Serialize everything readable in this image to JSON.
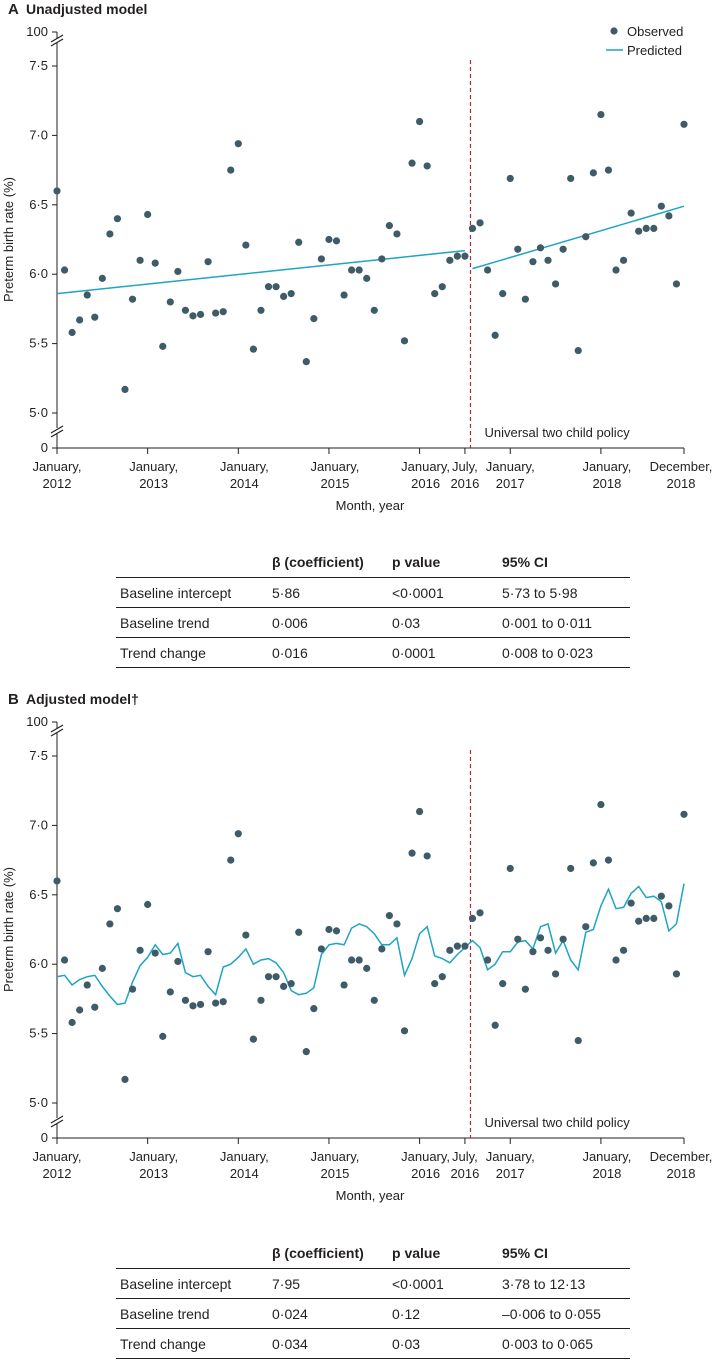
{
  "colors": {
    "observed": "#3f5b68",
    "predicted": "#1ea4c4",
    "policy_line": "#b0283c",
    "axis": "#231f20"
  },
  "chart_data": [
    {
      "panel_letter": "A",
      "title": "Unadjusted model",
      "type": "scatter",
      "ylabel": "Preterm birth rate (%)",
      "xlabel": "Month, year",
      "x_ticks": [
        {
          "line1": "January,",
          "line2": "2012"
        },
        {
          "line1": "January,",
          "line2": "2013"
        },
        {
          "line1": "January,",
          "line2": "2014"
        },
        {
          "line1": "January,",
          "line2": "2015"
        },
        {
          "line1": "January,",
          "line2": "2016"
        },
        {
          "line1": "July,",
          "line2": "2016"
        },
        {
          "line1": "January,",
          "line2": "2017"
        },
        {
          "line1": "January,",
          "line2": "2018"
        },
        {
          "line1": "December,",
          "line2": "2018"
        }
      ],
      "y_ticks": [
        "5·0",
        "5·5",
        "6·0",
        "6·5",
        "7·0",
        "7·5"
      ],
      "y_break_top": "100",
      "y_break_bottom": "0",
      "ylim": [
        4.9,
        7.6
      ],
      "legend": {
        "observed": "Observed",
        "predicted": "Predicted",
        "position": "top-right"
      },
      "policy_month": 55,
      "policy_label": "Universal two child policy",
      "observed": [
        6.6,
        6.03,
        5.58,
        5.67,
        5.85,
        5.69,
        5.97,
        6.29,
        6.4,
        5.17,
        5.82,
        6.1,
        6.43,
        6.08,
        5.48,
        5.8,
        6.02,
        5.74,
        5.7,
        5.71,
        6.09,
        5.72,
        5.73,
        6.75,
        6.94,
        6.21,
        5.46,
        5.74,
        5.91,
        5.91,
        5.84,
        5.86,
        6.23,
        5.37,
        5.68,
        6.11,
        6.25,
        6.24,
        5.85,
        6.03,
        6.03,
        5.97,
        5.74,
        6.11,
        6.35,
        6.29,
        5.52,
        6.8,
        7.1,
        6.78,
        5.86,
        5.91,
        6.1,
        6.13,
        6.13,
        6.33,
        6.37,
        6.03,
        5.56,
        5.86,
        6.69,
        6.18,
        5.82,
        6.09,
        6.19,
        6.1,
        5.93,
        6.18,
        6.69,
        5.45,
        6.27,
        6.73,
        7.15,
        6.75,
        6.03,
        6.1,
        6.44,
        6.31,
        6.33,
        6.33,
        6.49,
        6.42,
        5.93,
        7.08
      ],
      "predicted_segments": [
        {
          "x": [
            0,
            54
          ],
          "y": [
            5.86,
            6.17
          ]
        },
        {
          "x": [
            55,
            83
          ],
          "y": [
            6.04,
            6.49
          ]
        }
      ],
      "table": {
        "headers": [
          "",
          "β (coefficient)",
          "p value",
          "95% CI"
        ],
        "rows": [
          [
            "Baseline intercept",
            "5·86",
            "<0·0001",
            "5·73 to 5·98"
          ],
          [
            "Baseline trend",
            "0·006",
            "0·03",
            "0·001 to 0·011"
          ],
          [
            "Trend change",
            "0·016",
            "0·0001",
            "0·008 to 0·023"
          ]
        ]
      }
    },
    {
      "panel_letter": "B",
      "title": "Adjusted model†",
      "type": "scatter",
      "ylabel": "Preterm birth rate (%)",
      "xlabel": "Month, year",
      "x_ticks": [
        {
          "line1": "January,",
          "line2": "2012"
        },
        {
          "line1": "January,",
          "line2": "2013"
        },
        {
          "line1": "January,",
          "line2": "2014"
        },
        {
          "line1": "January,",
          "line2": "2015"
        },
        {
          "line1": "January,",
          "line2": "2016"
        },
        {
          "line1": "July,",
          "line2": "2016"
        },
        {
          "line1": "January,",
          "line2": "2017"
        },
        {
          "line1": "January,",
          "line2": "2018"
        },
        {
          "line1": "December,",
          "line2": "2018"
        }
      ],
      "y_ticks": [
        "5·0",
        "5·5",
        "6·0",
        "6·5",
        "7·0",
        "7·5"
      ],
      "y_break_top": "100",
      "y_break_bottom": "0",
      "ylim": [
        4.9,
        7.6
      ],
      "policy_month": 55,
      "policy_label": "Universal two child policy",
      "observed": [
        6.6,
        6.03,
        5.58,
        5.67,
        5.85,
        5.69,
        5.97,
        6.29,
        6.4,
        5.17,
        5.82,
        6.1,
        6.43,
        6.08,
        5.48,
        5.8,
        6.02,
        5.74,
        5.7,
        5.71,
        6.09,
        5.72,
        5.73,
        6.75,
        6.94,
        6.21,
        5.46,
        5.74,
        5.91,
        5.91,
        5.84,
        5.86,
        6.23,
        5.37,
        5.68,
        6.11,
        6.25,
        6.24,
        5.85,
        6.03,
        6.03,
        5.97,
        5.74,
        6.11,
        6.35,
        6.29,
        5.52,
        6.8,
        7.1,
        6.78,
        5.86,
        5.91,
        6.1,
        6.13,
        6.13,
        6.33,
        6.37,
        6.03,
        5.56,
        5.86,
        6.69,
        6.18,
        5.82,
        6.09,
        6.19,
        6.1,
        5.93,
        6.18,
        6.69,
        5.45,
        6.27,
        6.73,
        7.15,
        6.75,
        6.03,
        6.1,
        6.44,
        6.31,
        6.33,
        6.33,
        6.49,
        6.42,
        5.93,
        7.08
      ],
      "predicted": [
        5.91,
        5.92,
        5.85,
        5.89,
        5.91,
        5.92,
        5.84,
        5.77,
        5.71,
        5.72,
        5.87,
        5.99,
        6.05,
        6.14,
        6.07,
        6.08,
        6.15,
        5.94,
        5.91,
        5.92,
        5.84,
        5.78,
        5.98,
        6.0,
        6.05,
        6.11,
        6.0,
        6.03,
        6.04,
        6.01,
        5.94,
        5.81,
        5.78,
        5.79,
        5.83,
        6.07,
        6.14,
        6.15,
        6.14,
        6.26,
        6.29,
        6.27,
        6.22,
        6.14,
        6.14,
        6.19,
        5.92,
        6.04,
        6.22,
        6.27,
        6.06,
        6.04,
        6.01,
        6.07,
        6.12,
        6.17,
        6.12,
        5.96,
        6.0,
        6.09,
        6.09,
        6.16,
        6.17,
        6.11,
        6.27,
        6.29,
        6.08,
        6.17,
        6.03,
        5.96,
        6.23,
        6.25,
        6.42,
        6.54,
        6.4,
        6.41,
        6.51,
        6.56,
        6.48,
        6.49,
        6.45,
        6.24,
        6.29,
        6.58
      ],
      "table": {
        "headers": [
          "",
          "β (coefficient)",
          "p value",
          "95% CI"
        ],
        "rows": [
          [
            "Baseline intercept",
            "7·95",
            "<0·0001",
            "3·78 to 12·13"
          ],
          [
            "Baseline trend",
            "0·024",
            "0·12",
            "–0·006 to 0·055"
          ],
          [
            "Trend change",
            "0·034",
            "0·03",
            "0·003  to 0·065"
          ]
        ]
      }
    }
  ]
}
